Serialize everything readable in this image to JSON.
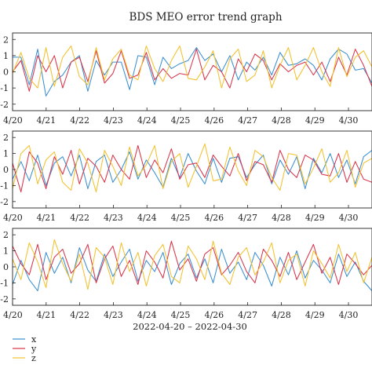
{
  "chart_data": {
    "type": "line",
    "title": "BDS MEO error trend graph",
    "xlabel": "2022-04-20 – 2022-04-30",
    "x_tick_labels": [
      "4/20",
      "4/21",
      "4/22",
      "4/23",
      "4/24",
      "4/25",
      "4/26",
      "4/27",
      "4/28",
      "4/29",
      "4/30"
    ],
    "y_tick_labels": [
      "2",
      "1",
      "0",
      "-1",
      "-2"
    ],
    "ylim": [
      -2.4,
      2.4
    ],
    "xlim_days": [
      0,
      10.7
    ],
    "grid": false,
    "legend_position": "bottom-left",
    "series_meta": [
      {
        "name": "x",
        "color": "#3a8fd0"
      },
      {
        "name": "y",
        "color": "#d9344a"
      },
      {
        "name": "z",
        "color": "#f2c12e"
      }
    ],
    "panels": [
      {
        "series": [
          {
            "name": "x",
            "values": [
              0.9,
              0.9,
              -0.8,
              1.4,
              -1.5,
              -0.6,
              -0.2,
              0.6,
              1.0,
              -1.2,
              0.7,
              -0.2,
              0.6,
              0.6,
              -1.1,
              1.0,
              0.9,
              -0.8,
              0.9,
              0.2,
              0.5,
              0.7,
              1.5,
              0.7,
              1.1,
              0.0,
              1.0,
              -0.5,
              0.6,
              0.1,
              0.9,
              -0.2,
              1.2,
              0.4,
              0.5,
              0.8,
              0.4,
              -0.5,
              0.8,
              1.4,
              1.1,
              0.1,
              0.2,
              -0.7
            ]
          },
          {
            "name": "y",
            "values": [
              0.0,
              0.7,
              -1.2,
              1.0,
              0.0,
              1.0,
              -1.0,
              0.6,
              0.9,
              -0.6,
              1.3,
              -0.7,
              -0.1,
              1.3,
              -0.4,
              -0.2,
              1.2,
              -0.5,
              0.2,
              -0.4,
              -0.1,
              -0.2,
              1.4,
              -0.5,
              0.4,
              0.0,
              -1.0,
              0.8,
              0.0,
              1.1,
              0.7,
              -0.5,
              0.5,
              0.0,
              0.4,
              0.6,
              -0.2,
              0.6,
              -0.6,
              0.9,
              -0.2,
              1.4,
              0.4,
              -0.9
            ]
          },
          {
            "name": "z",
            "values": [
              -0.1,
              1.2,
              -0.4,
              -1.0,
              1.5,
              -0.9,
              0.9,
              1.6,
              -0.3,
              -0.8,
              1.5,
              -0.5,
              0.8,
              1.4,
              -0.2,
              -0.5,
              1.6,
              0.2,
              -0.6,
              0.7,
              1.6,
              -0.4,
              -0.5,
              0.3,
              1.3,
              -1.0,
              0.8,
              1.4,
              -0.6,
              -0.2,
              1.3,
              -1.0,
              0.4,
              1.5,
              -0.5,
              0.4,
              1.5,
              0.0,
              -0.9,
              1.5,
              -0.3,
              0.9,
              1.3,
              0.3
            ]
          }
        ]
      },
      {
        "series": [
          {
            "name": "x",
            "values": [
              -0.6,
              0.5,
              -0.7,
              0.9,
              -1.0,
              0.4,
              0.8,
              -0.4,
              0.9,
              -1.2,
              0.5,
              0.9,
              -0.8,
              0.0,
              1.1,
              -0.6,
              0.6,
              -0.2,
              -1.1,
              0.7,
              -0.5,
              1.0,
              -0.1,
              -0.9,
              0.7,
              -0.8,
              0.7,
              0.8,
              -0.5,
              0.3,
              0.9,
              -0.9,
              0.6,
              -0.3,
              0.8,
              -1.2,
              0.7,
              -0.2,
              1.0,
              -0.5,
              0.6,
              -0.9,
              0.8,
              1.2
            ]
          },
          {
            "name": "y",
            "values": [
              0.4,
              -1.4,
              1.1,
              0.4,
              -1.2,
              0.8,
              -0.3,
              1.2,
              -0.9,
              0.7,
              0.2,
              -0.8,
              0.9,
              0.0,
              -0.6,
              1.5,
              -0.5,
              0.6,
              -0.2,
              1.3,
              -0.6,
              0.3,
              0.4,
              -0.5,
              0.9,
              0.2,
              -0.4,
              1.0,
              -0.7,
              0.5,
              0.3,
              -0.8,
              1.2,
              0.0,
              -0.5,
              0.9,
              0.6,
              -0.3,
              -0.4,
              1.0,
              -0.8,
              0.5,
              -0.6,
              -0.8
            ]
          },
          {
            "name": "z",
            "values": [
              -1.2,
              1.0,
              1.5,
              -0.9,
              0.6,
              1.1,
              -0.8,
              -1.3,
              1.3,
              0.4,
              -1.4,
              1.2,
              0.2,
              -1.0,
              1.4,
              -0.4,
              0.3,
              1.5,
              -1.2,
              0.5,
              1.0,
              -1.1,
              0.2,
              1.6,
              -0.7,
              -0.6,
              1.4,
              -0.1,
              -1.0,
              1.2,
              0.8,
              -0.5,
              -1.3,
              1.0,
              0.9,
              -0.9,
              0.1,
              1.3,
              -0.8,
              -0.2,
              1.2,
              -1.1,
              0.4,
              0.7
            ]
          }
        ]
      },
      {
        "series": [
          {
            "name": "x",
            "values": [
              -1.1,
              0.4,
              -0.8,
              -1.5,
              0.9,
              -0.4,
              0.6,
              -1.0,
              1.2,
              -0.2,
              -0.9,
              0.8,
              -0.6,
              0.3,
              1.1,
              -0.9,
              0.4,
              -0.3,
              0.9,
              -1.1,
              0.2,
              0.8,
              -0.7,
              0.5,
              -1.0,
              1.1,
              -0.4,
              0.3,
              -0.8,
              0.9,
              0.1,
              -1.2,
              0.6,
              -0.5,
              1.0,
              -0.7,
              0.4,
              -0.2,
              -1.0,
              0.8,
              -0.6,
              0.3,
              -0.9,
              -1.5
            ]
          },
          {
            "name": "y",
            "values": [
              1.3,
              0.2,
              -0.5,
              1.4,
              -0.8,
              0.6,
              1.1,
              -0.4,
              0.2,
              1.4,
              -1.0,
              0.5,
              1.3,
              -0.6,
              0.4,
              -1.1,
              1.0,
              0.3,
              -0.7,
              1.6,
              -0.2,
              0.5,
              -0.9,
              0.8,
              1.2,
              -0.5,
              0.1,
              0.9,
              -0.3,
              -1.0,
              1.1,
              0.4,
              -0.6,
              0.9,
              -0.8,
              0.3,
              1.4,
              -0.4,
              0.6,
              -1.1,
              0.8,
              0.2,
              -0.5,
              0.1
            ]
          },
          {
            "name": "z",
            "values": [
              0.5,
              -0.8,
              1.5,
              0.3,
              -1.3,
              1.7,
              0.2,
              -0.9,
              0.8,
              -1.4,
              1.2,
              0.6,
              -1.1,
              1.5,
              -0.3,
              0.9,
              -1.2,
              0.7,
              1.4,
              -0.6,
              -1.0,
              1.3,
              0.5,
              -0.8,
              1.6,
              -0.4,
              -1.1,
              0.6,
              1.2,
              -0.5,
              0.3,
              1.5,
              -1.0,
              0.4,
              0.8,
              -1.2,
              1.0,
              0.2,
              -0.7,
              1.4,
              -0.3,
              0.9,
              -1.0,
              0.6
            ]
          }
        ]
      }
    ]
  }
}
